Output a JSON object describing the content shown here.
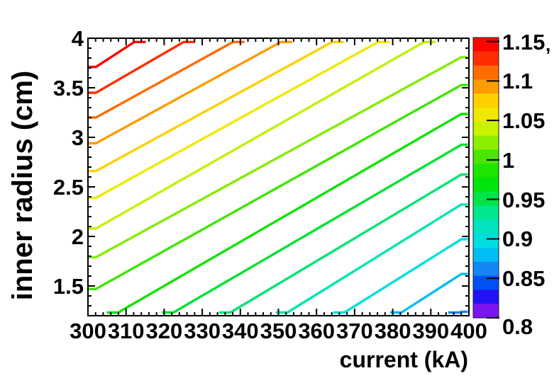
{
  "chart_data": {
    "type": "contour",
    "title": "",
    "xlabel": "current (kA)",
    "ylabel": "inner radius (cm)",
    "xlim": [
      300,
      400
    ],
    "ylim": [
      1.2,
      4.0
    ],
    "zlim": [
      0.8,
      1.155
    ],
    "grid": false,
    "x_ticks": {
      "labels": [
        "300",
        "310",
        "320",
        "330",
        "340",
        "350",
        "360",
        "370",
        "380",
        "390",
        "400"
      ],
      "values": [
        300,
        310,
        320,
        330,
        340,
        350,
        360,
        370,
        380,
        390,
        400
      ],
      "minor_step": 2
    },
    "y_ticks": {
      "labels": [
        "4",
        "3.5",
        "3",
        "2.5",
        "2",
        "1.5"
      ],
      "values": [
        4,
        3.5,
        3,
        2.5,
        2,
        1.5
      ],
      "minor_step": 0.1
    },
    "colorbar": {
      "labels": [
        "1.15",
        "1.1",
        "1.05",
        "1",
        "0.95",
        "0.9",
        "0.85",
        "0.8"
      ],
      "values": [
        1.15,
        1.1,
        1.05,
        1.0,
        0.95,
        0.9,
        0.85,
        0.8
      ],
      "overflow_mark": ",",
      "palette_top_to_bottom": [
        "#fe0600",
        "#ff2e00",
        "#ff6c00",
        "#ff9c00",
        "#ffd000",
        "#f0e800",
        "#c8f200",
        "#8cee00",
        "#4ae600",
        "#1ee400",
        "#00e40e",
        "#00e546",
        "#00e68c",
        "#00e2c0",
        "#00dee0",
        "#00bef5",
        "#1486f5",
        "#0050f5",
        "#2312f5",
        "#7c14f0"
      ]
    },
    "contour_lines": [
      {
        "level": 1.1373,
        "color": "#fe0600",
        "from": [
          300,
          3.71
        ],
        "to": [
          314,
          4.0
        ]
      },
      {
        "level": 1.1195,
        "color": "#ff2e00",
        "from": [
          300,
          3.45
        ],
        "to": [
          327,
          4.0
        ]
      },
      {
        "level": 1.1018,
        "color": "#ff6c00",
        "from": [
          300,
          3.2
        ],
        "to": [
          340,
          4.0
        ]
      },
      {
        "level": 1.084,
        "color": "#ff9c00",
        "from": [
          300,
          2.94
        ],
        "to": [
          352.5,
          4.0
        ]
      },
      {
        "level": 1.0663,
        "color": "#ffd000",
        "from": [
          300,
          2.66
        ],
        "to": [
          366,
          4.0
        ]
      },
      {
        "level": 1.0485,
        "color": "#f0e800",
        "from": [
          300,
          2.39
        ],
        "to": [
          378,
          4.0
        ]
      },
      {
        "level": 1.0308,
        "color": "#c0f200",
        "from": [
          300,
          2.08
        ],
        "to": [
          390,
          4.0
        ]
      },
      {
        "level": 1.013,
        "color": "#84ec00",
        "from": [
          300,
          1.79
        ],
        "to": [
          400,
          3.85
        ]
      },
      {
        "level": 0.9953,
        "color": "#3ce600",
        "from": [
          300,
          1.47
        ],
        "to": [
          400,
          3.57
        ]
      },
      {
        "level": 0.9775,
        "color": "#10e300",
        "from": [
          306.5,
          1.2
        ],
        "to": [
          400,
          3.28
        ]
      },
      {
        "level": 0.9598,
        "color": "#00e332",
        "from": [
          321,
          1.2
        ],
        "to": [
          400,
          2.97
        ]
      },
      {
        "level": 0.942,
        "color": "#00e474",
        "from": [
          336,
          1.2
        ],
        "to": [
          400,
          2.67
        ]
      },
      {
        "level": 0.9243,
        "color": "#00e6ae",
        "from": [
          351,
          1.2
        ],
        "to": [
          400,
          2.37
        ]
      },
      {
        "level": 0.9065,
        "color": "#00dede",
        "from": [
          366,
          1.2
        ],
        "to": [
          400,
          2.02
        ]
      },
      {
        "level": 0.8888,
        "color": "#00bcf5",
        "from": [
          381,
          1.2
        ],
        "to": [
          400,
          1.67
        ]
      },
      {
        "level": 0.871,
        "color": "#1284f5",
        "from": [
          396,
          1.2
        ],
        "to": [
          400,
          1.28
        ]
      }
    ]
  },
  "style": {
    "background": "#ffffff",
    "frame_color": "#000000",
    "text_color": "#000000"
  }
}
